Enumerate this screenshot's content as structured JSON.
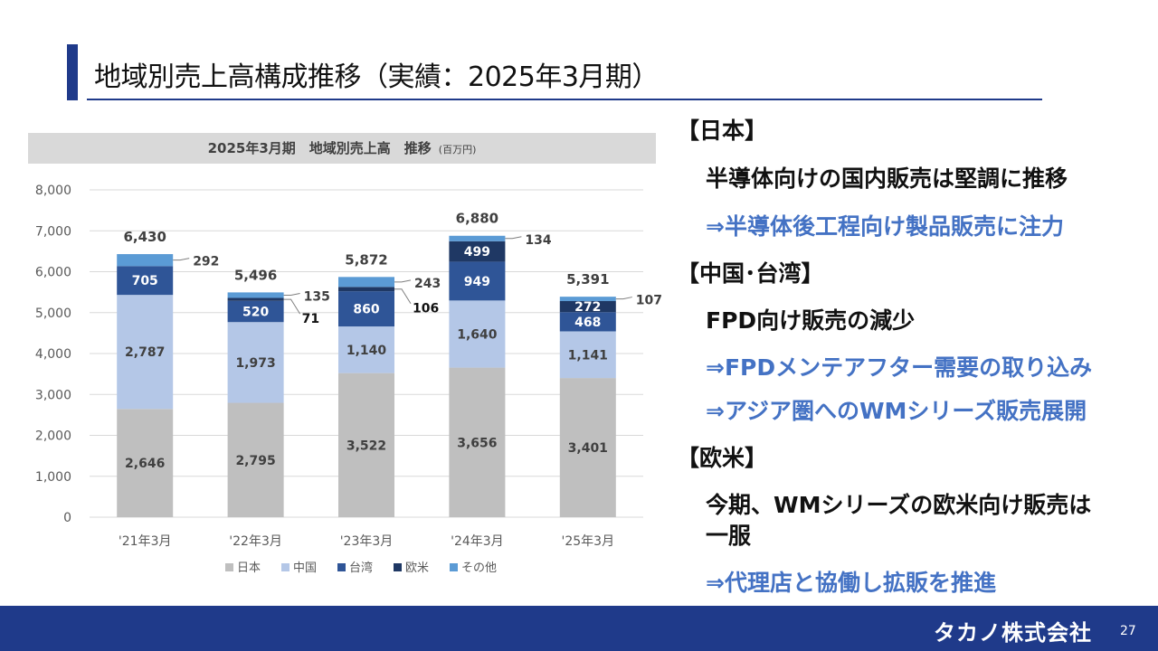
{
  "page": {
    "title": "地域別売上高構成推移（実績：2025年3月期）",
    "page_number": "27",
    "company_logo": "タカノ株式会社"
  },
  "chart_title": {
    "main": "2025年3月期　地域別売上高　推移",
    "unit": "(百万円)"
  },
  "chart_data": {
    "type": "bar",
    "stacked": true,
    "categories": [
      "'21年3月",
      "'22年3月",
      "'23年3月",
      "'24年3月",
      "'25年3月"
    ],
    "series": [
      {
        "name": "日本",
        "color": "#bfbfbf",
        "values": [
          2646,
          2795,
          3522,
          3656,
          3401
        ],
        "labels": [
          "2,646",
          "2,795",
          "3,522",
          "3,656",
          "3,401"
        ]
      },
      {
        "name": "中国",
        "color": "#b4c7e7",
        "values": [
          2787,
          1973,
          1140,
          1640,
          1141
        ],
        "labels": [
          "2,787",
          "1,973",
          "1,140",
          "1,640",
          "1,141"
        ]
      },
      {
        "name": "台湾",
        "color": "#2f5597",
        "values": [
          705,
          520,
          860,
          949,
          468
        ],
        "labels": [
          "705",
          "520",
          "860",
          "949",
          "468"
        ]
      },
      {
        "name": "欧米",
        "color": "#1f3864",
        "values": [
          0,
          71,
          106,
          499,
          272
        ],
        "labels": [
          "",
          "71",
          "106",
          "499",
          "272"
        ]
      },
      {
        "name": "その他",
        "color": "#5b9bd5",
        "values": [
          292,
          135,
          243,
          134,
          107
        ],
        "labels": [
          "292",
          "135",
          "243",
          "134",
          "107"
        ]
      }
    ],
    "totals": [
      6430,
      5496,
      5872,
      6880,
      5391
    ],
    "total_labels": [
      "6,430",
      "5,496",
      "5,872",
      "6,880",
      "5,391"
    ],
    "ylim": [
      0,
      8000
    ],
    "yticks": [
      0,
      1000,
      2000,
      3000,
      4000,
      5000,
      6000,
      7000,
      8000
    ],
    "ytick_labels": [
      "0",
      "1,000",
      "2,000",
      "3,000",
      "4,000",
      "5,000",
      "6,000",
      "7,000",
      "8,000"
    ],
    "legend": [
      "日本",
      "中国",
      "台湾",
      "欧米",
      "その他"
    ],
    "legend_position": "bottom",
    "grid": true
  },
  "right_panel": {
    "japan_heading": "【日本】",
    "japan_point": "半導体向けの国内販売は堅調に推移",
    "japan_action": "⇒半導体後工程向け製品販売に注力",
    "china_taiwan_heading": "【中国･台湾】",
    "china_taiwan_point": "FPD向け販売の減少",
    "china_taiwan_action_1": "⇒FPDメンテアフター需要の取り込み",
    "china_taiwan_action_2": "⇒アジア圏へのWMシリーズ販売展開",
    "europe_us_heading": "【欧米】",
    "europe_us_point_line1": "今期、WMシリーズの欧米向け販売は",
    "europe_us_point_line2": "一服",
    "europe_us_action": "⇒代理店と協働し拡販を推進"
  }
}
